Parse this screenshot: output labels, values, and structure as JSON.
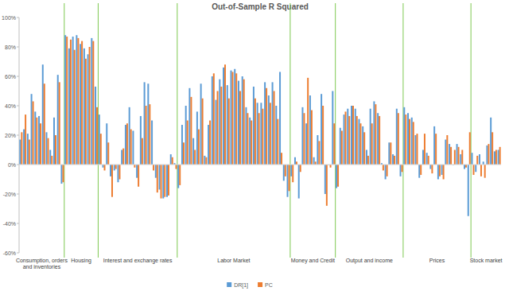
{
  "chart_data": {
    "type": "bar",
    "title": "Out-of-Sample R Squared",
    "categories": [
      null,
      null,
      null,
      null,
      null,
      null,
      null,
      null,
      null,
      null,
      null,
      null,
      null,
      null,
      null,
      null,
      null,
      null,
      null,
      null,
      null,
      null,
      null,
      null,
      null,
      null,
      null,
      null,
      null,
      null,
      null,
      null,
      null,
      null,
      null,
      null,
      null,
      null,
      null,
      null,
      null,
      null,
      null,
      null,
      null,
      null,
      null,
      null,
      null,
      null,
      null,
      null,
      null,
      null,
      null,
      null,
      null,
      null,
      null,
      null,
      null,
      null,
      null,
      null,
      null,
      null,
      null,
      null,
      null,
      null,
      null,
      null,
      null,
      null,
      null,
      null,
      null,
      null,
      null,
      null,
      null,
      null,
      null,
      null,
      null,
      null,
      null,
      null,
      null,
      null,
      null,
      null,
      null,
      null,
      null,
      null,
      null,
      null,
      null,
      null,
      null,
      null,
      null,
      null,
      null,
      null,
      null,
      null,
      null,
      null,
      null,
      null,
      null,
      null,
      null,
      null,
      null,
      null,
      null,
      null,
      null,
      null,
      null,
      null,
      null,
      null,
      null,
      null
    ],
    "groups": [
      {
        "name": "Consumption, orders and inventories",
        "count": 12
      },
      {
        "name": "Housing",
        "count": 9
      },
      {
        "name": "Interest and exchange rates",
        "count": 21
      },
      {
        "name": "Labor Market",
        "count": 30
      },
      {
        "name": "Money and Credit",
        "count": 12
      },
      {
        "name": "Output and income",
        "count": 18
      },
      {
        "name": "Prices",
        "count": 18
      },
      {
        "name": "Stock market",
        "count": 8
      }
    ],
    "series": [
      {
        "name": "DR[1]",
        "color": "#5b9bd5",
        "values": [
          17,
          24,
          21,
          48,
          36,
          33,
          68,
          22,
          10,
          32,
          61,
          -13,
          88,
          79,
          87,
          88,
          82,
          79,
          75,
          86,
          53,
          34,
          -2,
          28,
          -8,
          -4,
          -12,
          10,
          27,
          39,
          23,
          -9,
          33,
          56,
          55,
          30,
          -9,
          -17,
          -23,
          -22,
          7,
          1,
          -16,
          27,
          40,
          52,
          18,
          36,
          55,
          6,
          27,
          60,
          44,
          58,
          66,
          54,
          64,
          65,
          57,
          60,
          39,
          32,
          53,
          42,
          42,
          56,
          47,
          56,
          40,
          63,
          -11,
          -22,
          -8,
          5,
          -23,
          39,
          28,
          47,
          5,
          20,
          48,
          -20,
          0,
          50,
          -16,
          25,
          34,
          38,
          40,
          38,
          31,
          26,
          10,
          38,
          43,
          35,
          1,
          -10,
          15,
          7,
          38,
          -8,
          39,
          35,
          32,
          20,
          -9,
          10,
          8,
          -3,
          26,
          -10,
          -7,
          17,
          14,
          0,
          14,
          7,
          -3,
          -35,
          8,
          -5,
          7,
          2,
          13,
          32,
          9,
          10
        ]
      },
      {
        "name": "PC",
        "color": "#ed7d31",
        "values": [
          22,
          34,
          17,
          43,
          32,
          28,
          55,
          18,
          6,
          20,
          56,
          -12,
          87,
          85,
          78,
          86,
          84,
          72,
          80,
          84,
          39,
          21,
          -4,
          15,
          -22,
          -3,
          -10,
          11,
          28,
          24,
          -2,
          -15,
          18,
          40,
          41,
          -4,
          -19,
          -23,
          -22,
          -21,
          5,
          -3,
          -14,
          15,
          30,
          46,
          10,
          24,
          45,
          5,
          30,
          62,
          50,
          53,
          68,
          45,
          63,
          62,
          50,
          58,
          35,
          30,
          45,
          35,
          38,
          52,
          42,
          50,
          31,
          8,
          -8,
          -18,
          -12,
          2,
          -5,
          35,
          59,
          37,
          2,
          16,
          40,
          -28,
          -2,
          28,
          -15,
          23,
          36,
          33,
          40,
          33,
          28,
          22,
          6,
          28,
          41,
          33,
          -4,
          -8,
          15,
          6,
          35,
          -5,
          34,
          31,
          29,
          21,
          -7,
          21,
          6,
          -6,
          21,
          -8,
          -10,
          20,
          12,
          10,
          12,
          10,
          -2,
          22,
          -7,
          6,
          -8,
          -9,
          14,
          22,
          10,
          12
        ]
      }
    ],
    "ylim": [
      -60,
      100
    ],
    "yticks": [
      {
        "value": -60,
        "label": "-60%"
      },
      {
        "value": -40,
        "label": "-40%"
      },
      {
        "value": -20,
        "label": "-20%"
      },
      {
        "value": 0,
        "label": "0%"
      },
      {
        "value": 20,
        "label": "20%"
      },
      {
        "value": 40,
        "label": "40%"
      },
      {
        "value": 60,
        "label": "60%"
      },
      {
        "value": 80,
        "label": "80%"
      },
      {
        "value": 100,
        "label": "100%"
      }
    ],
    "grid": false,
    "legend": "bottom"
  }
}
